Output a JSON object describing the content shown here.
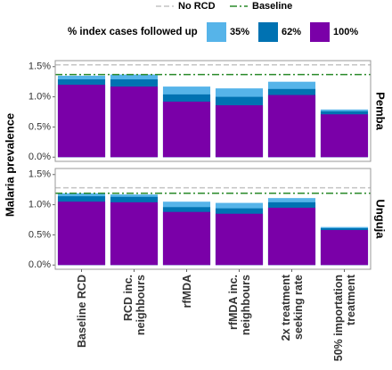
{
  "chart_data": [
    {
      "type": "bar",
      "y_label": "Malaria prevalence",
      "facet_label": "Pemba",
      "legend_title": "% index cases followed up",
      "ylim": [
        -0.07,
        1.6
      ],
      "yticks": [
        {
          "value": 0,
          "label": "0.0%"
        },
        {
          "value": 0.5,
          "label": "0.5%"
        },
        {
          "value": 1,
          "label": "1.0%"
        },
        {
          "value": 1.5,
          "label": "1.5%"
        }
      ],
      "reference_lines": [
        {
          "name": "No RCD",
          "color": "#c4c4c4",
          "style": "dashed",
          "value": 1.53
        },
        {
          "name": "Baseline",
          "color": "#2a8a2a",
          "style": "dotdash",
          "value": 1.37
        }
      ],
      "series": [
        {
          "name": "35%",
          "color": "#56b4e9",
          "values": [
            1.35,
            1.37,
            1.17,
            1.14,
            1.25,
            0.79
          ]
        },
        {
          "name": "62%",
          "color": "#0072b2",
          "values": [
            1.29,
            1.29,
            1.04,
            1.0,
            1.13,
            0.76
          ]
        },
        {
          "name": "100%",
          "color": "#7a00a8",
          "values": [
            1.2,
            1.17,
            0.92,
            0.86,
            1.03,
            0.71
          ]
        }
      ]
    },
    {
      "type": "bar",
      "facet_label": "Unguja",
      "categories": [
        "Baseline RCD",
        "RCD inc.\nneighbours",
        "rfMDA",
        "rfMDA inc.\nneighbours",
        "2x treatment\nseeking rate",
        "50% importation\ntreatment"
      ],
      "ylim": [
        -0.07,
        1.6
      ],
      "yticks": [
        {
          "value": 0,
          "label": "0.0%"
        },
        {
          "value": 0.5,
          "label": "0.5%"
        },
        {
          "value": 1,
          "label": "1.0%"
        },
        {
          "value": 1.5,
          "label": "1.5%"
        }
      ],
      "reference_lines": [
        {
          "value": 1.28
        },
        {
          "value": 1.19
        }
      ],
      "series": [
        {
          "color": "#56b4e9",
          "values": [
            1.19,
            1.17,
            1.05,
            1.03,
            1.11,
            0.63
          ]
        },
        {
          "color": "#0072b2",
          "values": [
            1.14,
            1.13,
            0.96,
            0.94,
            1.04,
            0.61
          ]
        },
        {
          "color": "#7a00a8",
          "values": [
            1.05,
            1.04,
            0.88,
            0.85,
            0.95,
            0.58
          ]
        }
      ]
    }
  ]
}
